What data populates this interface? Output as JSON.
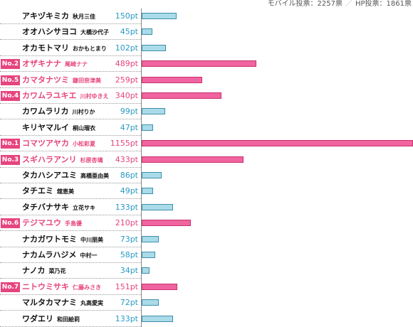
{
  "summary": {
    "mobile": "モバイル投票：2257票",
    "separator": "／",
    "hp": "HP投票：1861票"
  },
  "chart_data": {
    "type": "bar",
    "orientation": "horizontal",
    "unit": "pt",
    "xlim": [
      0,
      1155
    ],
    "colors": {
      "ranked": "#e6447e",
      "normal": "#2a9bc4",
      "normal_bar": "#a9dbe9",
      "ranked_bar": "#f064a0"
    },
    "rows": [
      {
        "rank": "",
        "name": "アキヅキミカ",
        "kanji": "秋月三佳",
        "value": 150,
        "label": "150pt"
      },
      {
        "rank": "",
        "name": "オオハシサヨコ",
        "kanji": "大橋沙代子",
        "value": 45,
        "label": "45pt"
      },
      {
        "rank": "",
        "name": "オカモトマリ",
        "kanji": "おかもとまり",
        "value": 102,
        "label": "102pt"
      },
      {
        "rank": "No.2",
        "name": "オザキナナ",
        "kanji": "尾崎ナナ",
        "value": 489,
        "label": "489pt"
      },
      {
        "rank": "No.5",
        "name": "カマタナツミ",
        "kanji": "鎌田奈津美",
        "value": 259,
        "label": "259pt"
      },
      {
        "rank": "No.4",
        "name": "カワムラユキエ",
        "kanji": "川村ゆきえ",
        "value": 340,
        "label": "340pt"
      },
      {
        "rank": "",
        "name": "カワムラリカ",
        "kanji": "川村りか",
        "value": 99,
        "label": "99pt"
      },
      {
        "rank": "",
        "name": "キリヤマルイ",
        "kanji": "桐山瑠衣",
        "value": 47,
        "label": "47pt"
      },
      {
        "rank": "No.1",
        "name": "コマツアヤカ",
        "kanji": "小松彩夏",
        "value": 1155,
        "label": "1155pt"
      },
      {
        "rank": "No.3",
        "name": "スギハラアンリ",
        "kanji": "杉原杏璃",
        "value": 433,
        "label": "433pt"
      },
      {
        "rank": "",
        "name": "タカハシアユミ",
        "kanji": "高橋亜由美",
        "value": 86,
        "label": "86pt"
      },
      {
        "rank": "",
        "name": "タチエミ",
        "kanji": "舘恵美",
        "value": 49,
        "label": "49pt"
      },
      {
        "rank": "",
        "name": "タチバナサキ",
        "kanji": "立花サキ",
        "value": 133,
        "label": "133pt"
      },
      {
        "rank": "No.6",
        "name": "テジマユウ",
        "kanji": "手島優",
        "value": 210,
        "label": "210pt"
      },
      {
        "rank": "",
        "name": "ナカガワトモミ",
        "kanji": "中川朋美",
        "value": 73,
        "label": "73pt"
      },
      {
        "rank": "",
        "name": "ナカムラハジメ",
        "kanji": "中村一",
        "value": 58,
        "label": "58pt"
      },
      {
        "rank": "",
        "name": "ナノカ",
        "kanji": "菜乃花",
        "value": 34,
        "label": "34pt"
      },
      {
        "rank": "No.7",
        "name": "ニトウミサキ",
        "kanji": "仁藤みさき",
        "value": 151,
        "label": "151pt"
      },
      {
        "rank": "",
        "name": "マルタカマナミ",
        "kanji": "丸高愛実",
        "value": 72,
        "label": "72pt"
      },
      {
        "rank": "",
        "name": "ワダエリ",
        "kanji": "和田絵莉",
        "value": 133,
        "label": "133pt"
      }
    ]
  }
}
